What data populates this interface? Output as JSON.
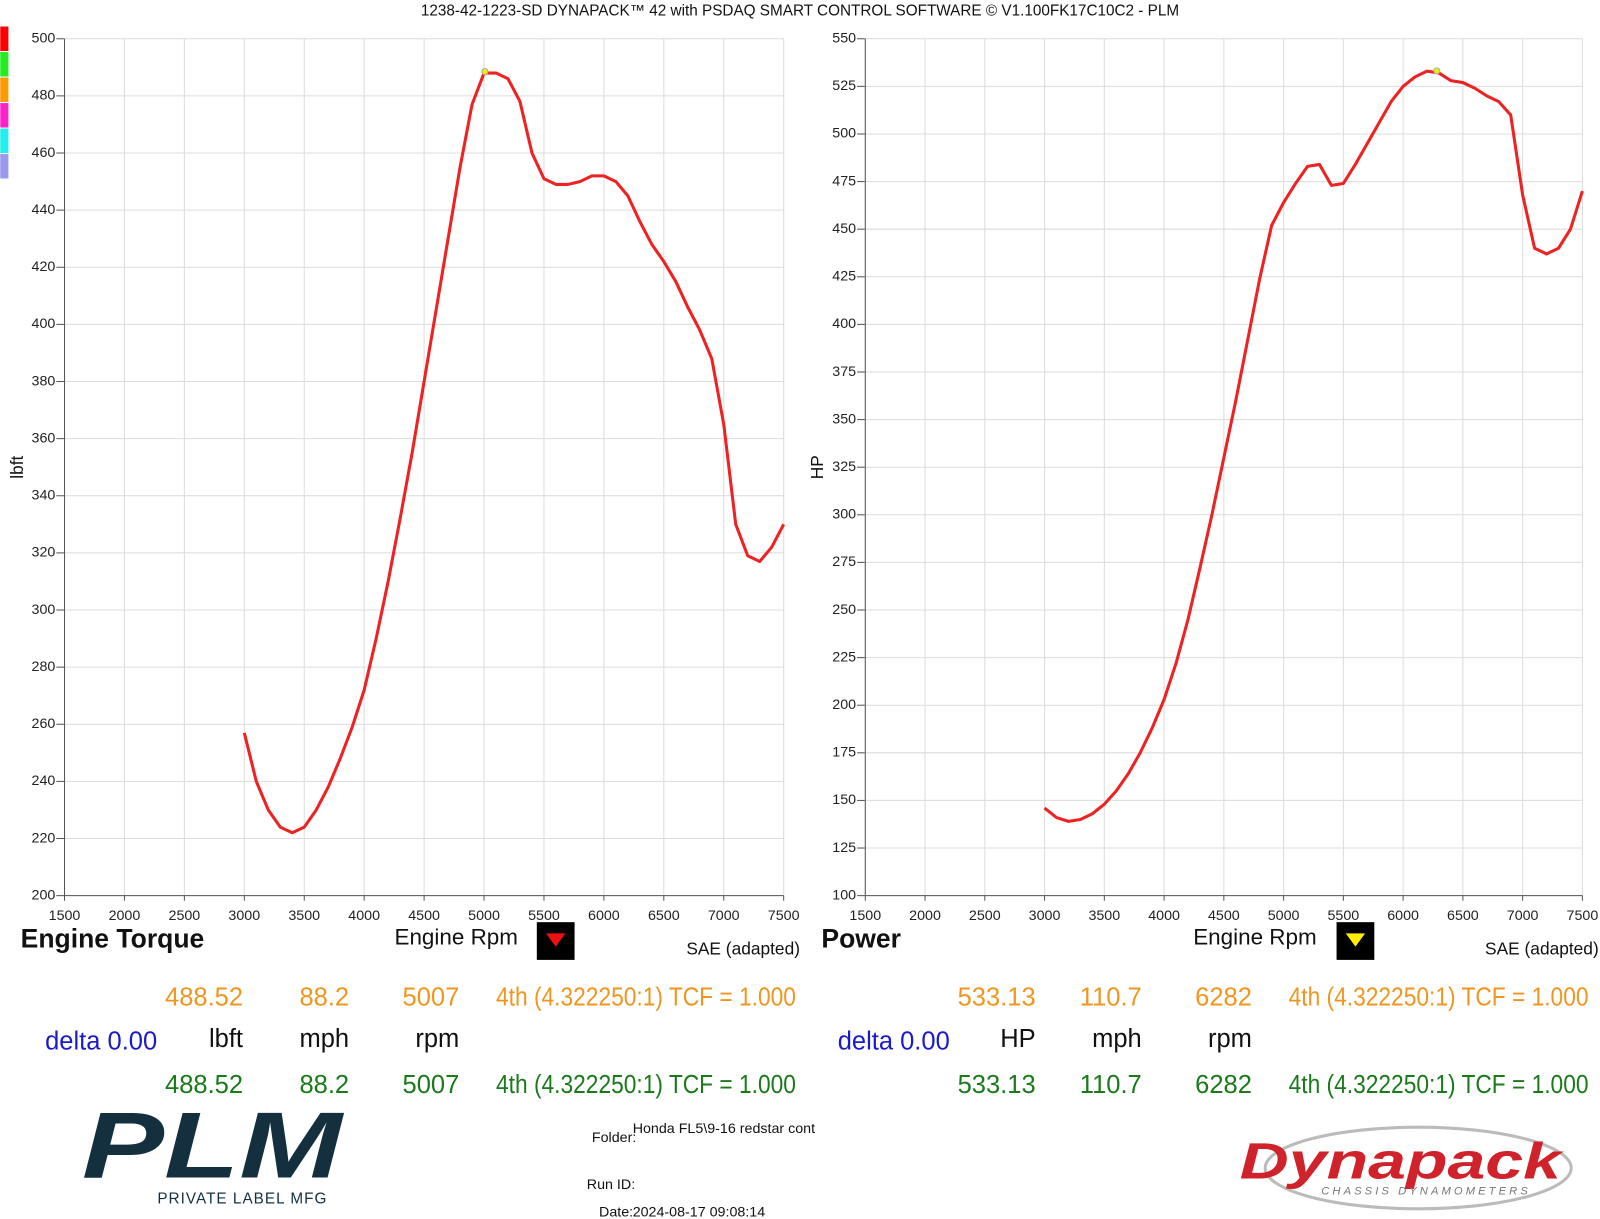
{
  "header": {
    "title": "1238-42-1223-SD DYNAPACK™ 42 with PSDAQ SMART CONTROL SOFTWARE © V1.100FK17C10C2 - PLM"
  },
  "chart_data": [
    {
      "type": "line",
      "title": "Engine Torque",
      "x_label": "Engine Rpm",
      "y_label": "lbft",
      "note": "SAE (adapted)",
      "color": "#ee2222",
      "x": [
        3000,
        3100,
        3200,
        3300,
        3400,
        3500,
        3600,
        3700,
        3800,
        3900,
        4000,
        4100,
        4200,
        4300,
        4400,
        4500,
        4600,
        4700,
        4800,
        4900,
        5000,
        5100,
        5200,
        5300,
        5400,
        5500,
        5600,
        5700,
        5800,
        5900,
        6000,
        6100,
        6200,
        6300,
        6400,
        6500,
        6600,
        6700,
        6800,
        6900,
        7000,
        7100,
        7200,
        7300,
        7400,
        7500
      ],
      "values": [
        257,
        240,
        230,
        224,
        222,
        224,
        230,
        238,
        248,
        259,
        272,
        290,
        310,
        332,
        355,
        380,
        405,
        430,
        455,
        477,
        488,
        488,
        486,
        478,
        460,
        451,
        449,
        449,
        450,
        452,
        452,
        450,
        445,
        436,
        428,
        422,
        415,
        406,
        398,
        388,
        365,
        330,
        319,
        317,
        322,
        330
      ],
      "xlim": [
        1500,
        7500
      ],
      "xticks": [
        1500,
        2000,
        2500,
        3000,
        3500,
        4000,
        4500,
        5000,
        5500,
        6000,
        6500,
        7000,
        7500
      ],
      "ylim": [
        200,
        500
      ],
      "yticks": [
        200,
        220,
        240,
        260,
        280,
        300,
        320,
        340,
        360,
        380,
        400,
        420,
        440,
        460,
        480,
        500
      ],
      "grid": true
    },
    {
      "type": "line",
      "title": "Power",
      "x_label": "Engine Rpm",
      "y_label": "HP",
      "note": "SAE (adapted)",
      "color": "#ee2222",
      "x": [
        3000,
        3100,
        3200,
        3300,
        3400,
        3500,
        3600,
        3700,
        3800,
        3900,
        4000,
        4100,
        4200,
        4300,
        4400,
        4500,
        4600,
        4700,
        4800,
        4900,
        5000,
        5100,
        5200,
        5300,
        5400,
        5500,
        5600,
        5700,
        5800,
        5900,
        6000,
        6100,
        6200,
        6300,
        6400,
        6500,
        6600,
        6700,
        6800,
        6900,
        7000,
        7100,
        7200,
        7300,
        7400,
        7500
      ],
      "values": [
        146,
        141,
        139,
        140,
        143,
        148,
        155,
        164,
        175,
        188,
        203,
        222,
        245,
        272,
        300,
        330,
        360,
        392,
        424,
        452,
        464,
        474,
        483,
        484,
        473,
        474,
        484,
        495,
        506,
        517,
        525,
        530,
        533,
        532,
        528,
        527,
        524,
        520,
        517,
        510,
        468,
        440,
        437,
        440,
        450,
        470
      ],
      "xlim": [
        1500,
        7500
      ],
      "xticks": [
        1500,
        2000,
        2500,
        3000,
        3500,
        4000,
        4500,
        5000,
        5500,
        6000,
        6500,
        7000,
        7500
      ],
      "ylim": [
        100,
        550
      ],
      "yticks": [
        100,
        125,
        150,
        175,
        200,
        225,
        250,
        275,
        300,
        325,
        350,
        375,
        400,
        425,
        450,
        475,
        500,
        525,
        550
      ],
      "grid": true
    }
  ],
  "readouts": [
    {
      "cursor1": {
        "value": 488.52,
        "speed": 88.2,
        "rpm": 5007,
        "gear": "4th (4.322250:1) TCF = 1.000"
      },
      "delta": "delta 0.00",
      "units": [
        "lbft",
        "mph",
        "rpm"
      ],
      "cursor2": {
        "value": 488.52,
        "speed": 88.2,
        "rpm": 5007,
        "gear": "4th (4.322250:1) TCF = 1.000"
      }
    },
    {
      "cursor1": {
        "value": 533.13,
        "speed": 110.7,
        "rpm": 6282,
        "gear": "4th (4.322250:1) TCF = 1.000"
      },
      "delta": "delta 0.00",
      "units": [
        "HP",
        "mph",
        "rpm"
      ],
      "cursor2": {
        "value": 533.13,
        "speed": 110.7,
        "rpm": 6282,
        "gear": "4th (4.322250:1) TCF = 1.000"
      }
    }
  ],
  "footer": {
    "folder_label": "Folder:",
    "folder": "Honda FL5\\9-16 redstar cont",
    "run_id_label": "Run ID:",
    "date_label": "Date:",
    "date": "2024-08-17 09:08:14"
  },
  "logos": {
    "plm": "PLM",
    "plm_sub": "PRIVATE LABEL MFG",
    "dynapack": "Dynapack",
    "dynapack_sub": "CHASSIS DYNAMOMETERS"
  }
}
